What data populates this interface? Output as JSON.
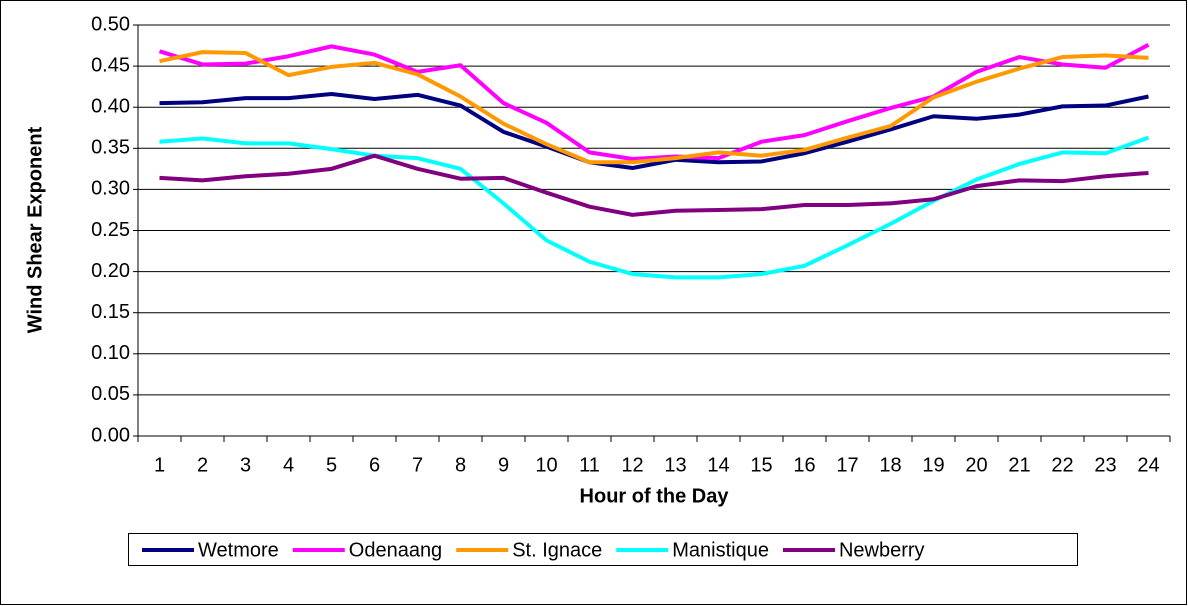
{
  "chart_data": {
    "type": "line",
    "x_label": "Hour of the Day",
    "y_label": "Wind Shear Exponent",
    "categories": [
      "1",
      "2",
      "3",
      "4",
      "5",
      "6",
      "7",
      "8",
      "9",
      "10",
      "11",
      "12",
      "13",
      "14",
      "15",
      "16",
      "17",
      "18",
      "19",
      "20",
      "21",
      "22",
      "23",
      "24"
    ],
    "series": [
      {
        "name": "Wetmore",
        "color": "#000080",
        "values": [
          0.405,
          0.406,
          0.411,
          0.411,
          0.416,
          0.41,
          0.415,
          0.402,
          0.37,
          0.352,
          0.333,
          0.326,
          0.336,
          0.333,
          0.334,
          0.344,
          0.358,
          0.373,
          0.389,
          0.386,
          0.391,
          0.401,
          0.402,
          0.413
        ]
      },
      {
        "name": "Odenaang",
        "color": "#FF00FF",
        "values": [
          0.468,
          0.452,
          0.453,
          0.462,
          0.474,
          0.464,
          0.443,
          0.451,
          0.405,
          0.381,
          0.345,
          0.337,
          0.34,
          0.338,
          0.358,
          0.366,
          0.383,
          0.399,
          0.413,
          0.443,
          0.461,
          0.452,
          0.448,
          0.476
        ]
      },
      {
        "name": "St. Ignace",
        "color": "#FF9900",
        "values": [
          0.456,
          0.467,
          0.466,
          0.439,
          0.449,
          0.454,
          0.44,
          0.413,
          0.38,
          0.355,
          0.333,
          0.333,
          0.338,
          0.345,
          0.341,
          0.348,
          0.363,
          0.377,
          0.412,
          0.431,
          0.447,
          0.461,
          0.463,
          0.46
        ]
      },
      {
        "name": "Manistique",
        "color": "#00FFFF",
        "values": [
          0.358,
          0.362,
          0.356,
          0.356,
          0.349,
          0.341,
          0.338,
          0.325,
          0.283,
          0.238,
          0.212,
          0.197,
          0.193,
          0.193,
          0.197,
          0.207,
          0.232,
          0.258,
          0.286,
          0.312,
          0.331,
          0.345,
          0.344,
          0.363
        ]
      },
      {
        "name": "Newberry",
        "color": "#800080",
        "values": [
          0.314,
          0.311,
          0.316,
          0.319,
          0.325,
          0.341,
          0.325,
          0.313,
          0.314,
          0.296,
          0.279,
          0.269,
          0.274,
          0.275,
          0.276,
          0.281,
          0.281,
          0.283,
          0.288,
          0.304,
          0.311,
          0.31,
          0.316,
          0.32
        ]
      }
    ],
    "ylim": [
      0,
      0.5
    ],
    "yticks": [
      {
        "value": 0,
        "label": "0.00"
      },
      0.05,
      {
        "value": 0.1,
        "label": "0.10"
      },
      0.15,
      {
        "value": 0.2,
        "label": "0.20"
      },
      0.25,
      {
        "value": 0.3,
        "label": "0.30"
      },
      0.35,
      {
        "value": 0.4,
        "label": "0.40"
      },
      0.45,
      {
        "value": 0.5,
        "label": "0.50"
      }
    ],
    "grid": true,
    "legend": "bottom"
  }
}
